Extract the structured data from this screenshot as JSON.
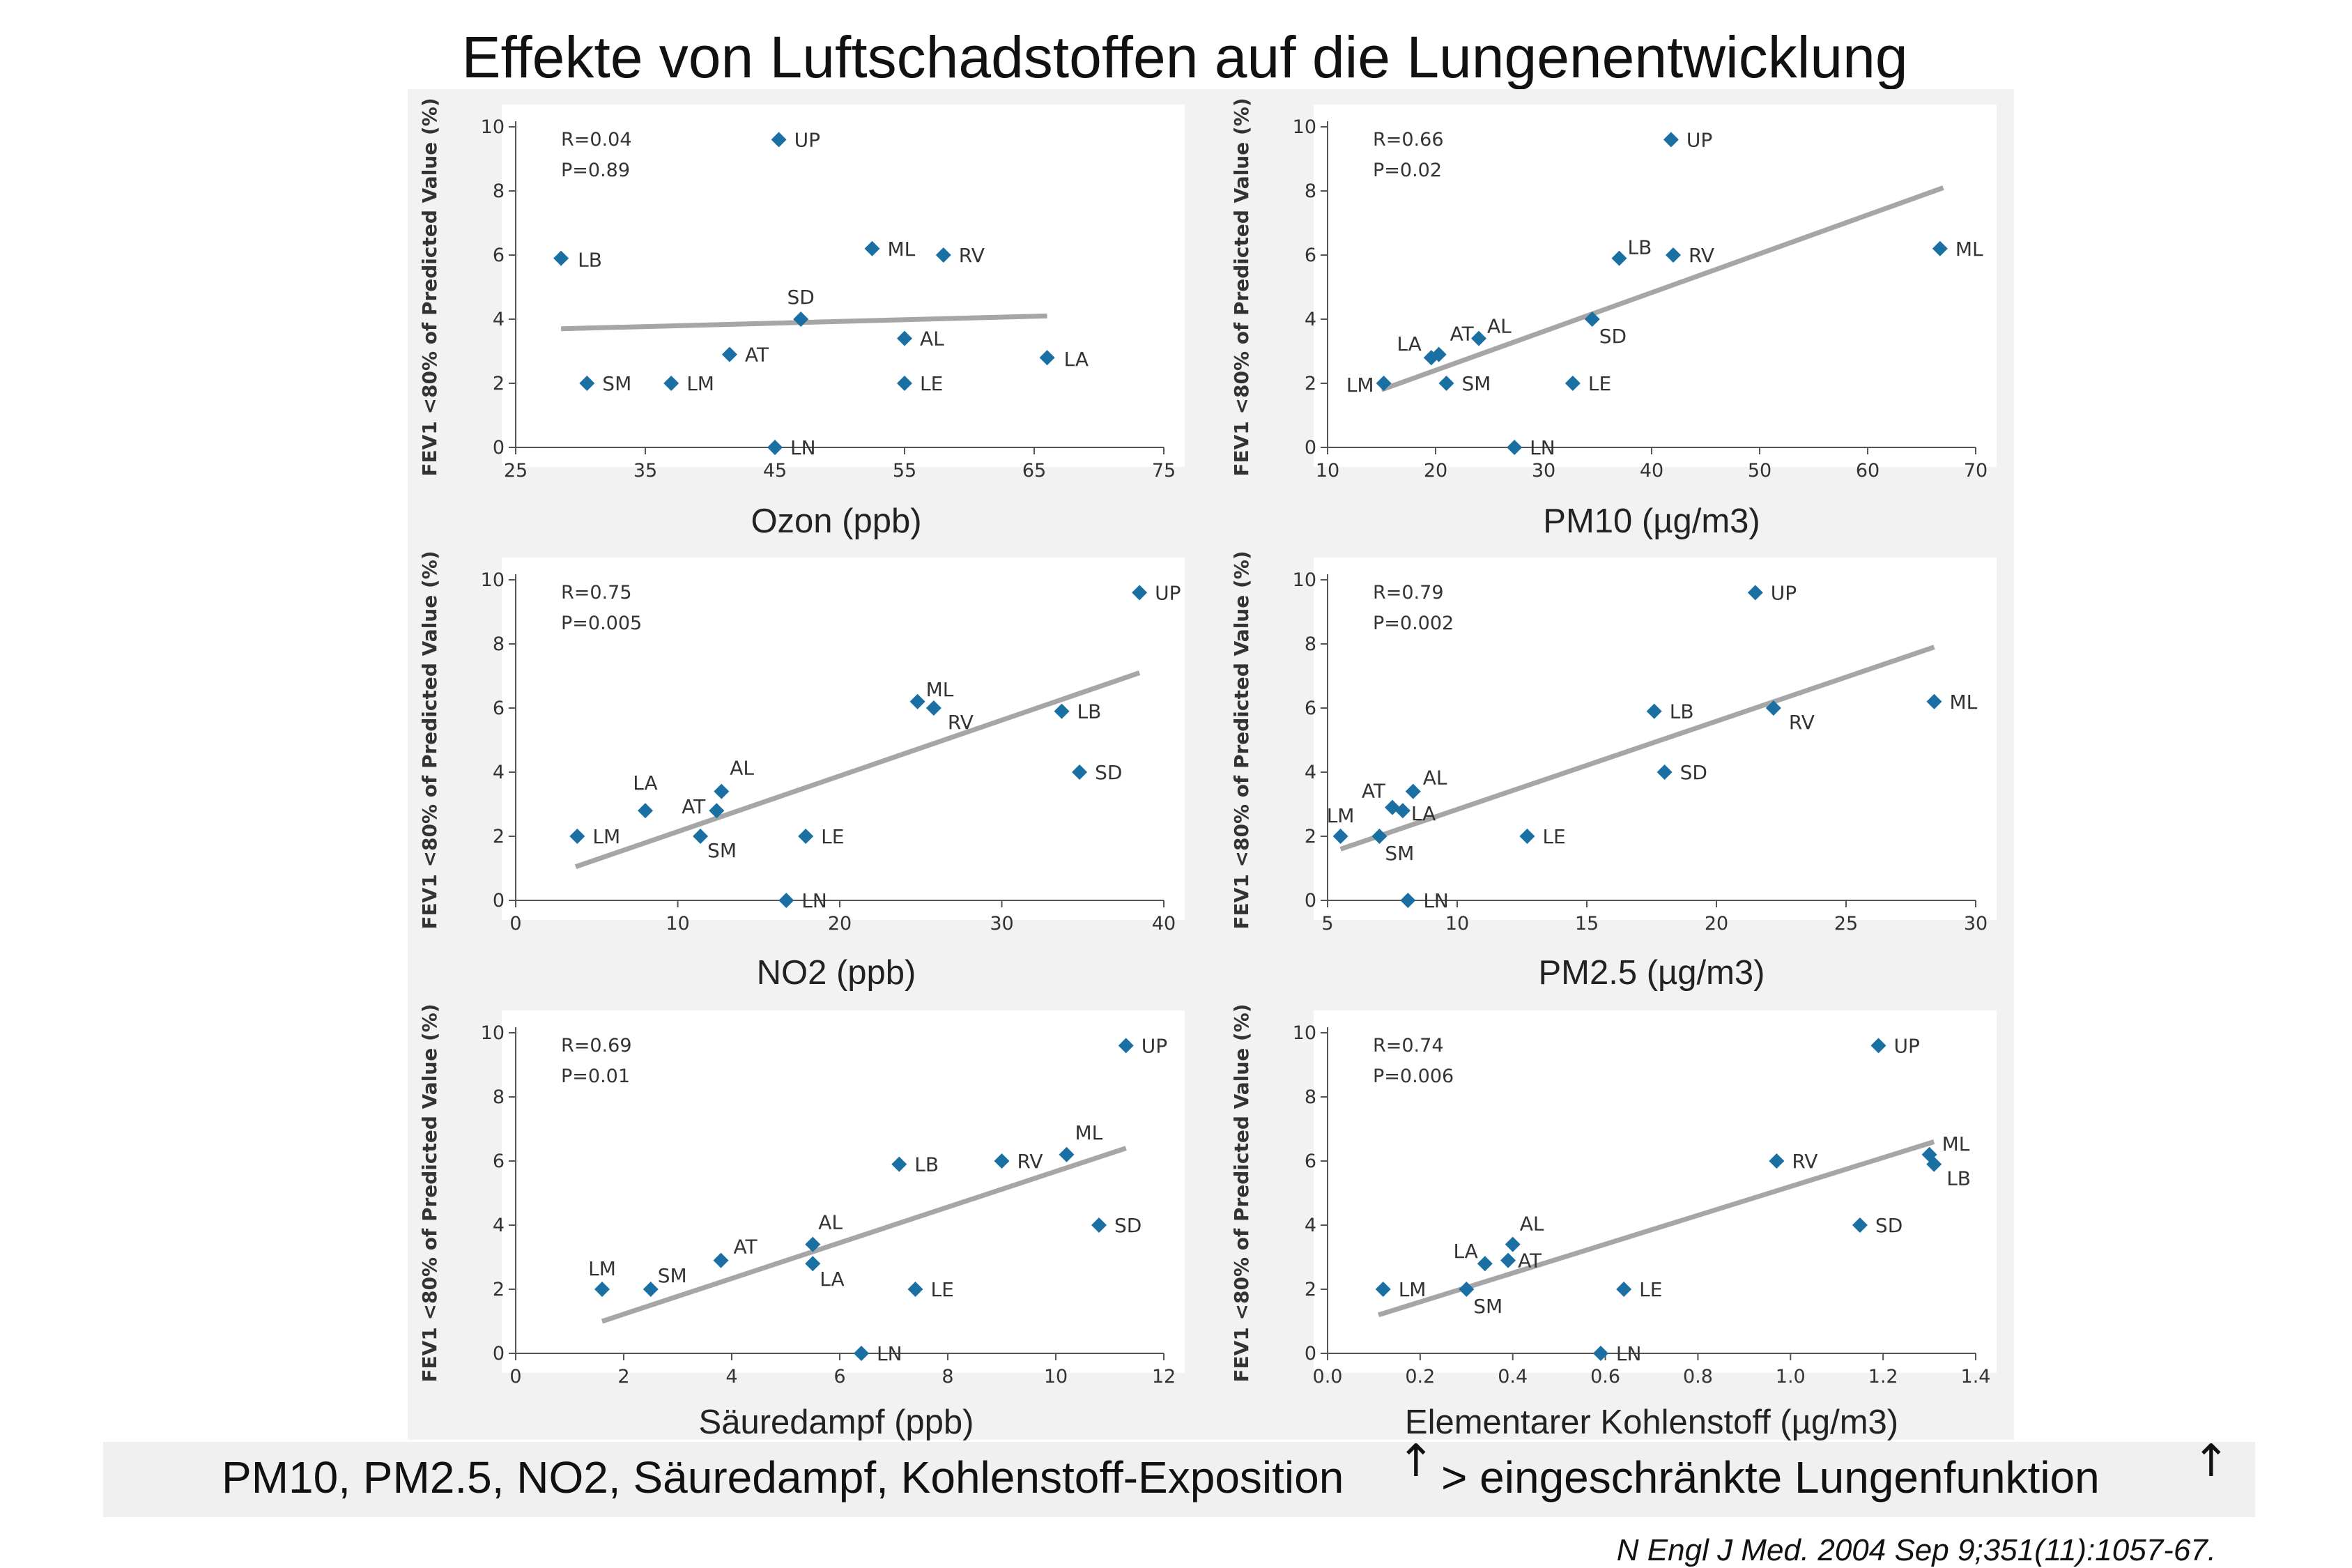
{
  "title": "Effekte von Luftschadstoffen auf die Lungenentwicklung",
  "summary": {
    "text": "PM10, PM2.5, NO2, Säuredampf, Kohlenstoff-Exposition",
    "text2": "> eingeschränkte Lungenfunktion",
    "arrow1": "↑",
    "arrow2": "↑"
  },
  "citation": "N Engl J Med. 2004 Sep 9;351(11):1057-67.",
  "colors": {
    "marker": "#1a6fa3",
    "fit_line": "#a6a6a6",
    "panel_bg": "#f2f2f2"
  },
  "chart_data": [
    {
      "type": "scatter",
      "caption": "Ozon (ppb)",
      "ylabel": "FEV1 <80% of Predicted Value (%)",
      "stats": [
        "R=0.04",
        "P=0.89"
      ],
      "xlim": [
        25,
        75
      ],
      "xticks": [
        25,
        35,
        45,
        55,
        65,
        75
      ],
      "ylim": [
        0,
        10
      ],
      "yticks": [
        0,
        2,
        4,
        6,
        8,
        10
      ],
      "fit": [
        [
          28.5,
          3.7
        ],
        [
          66.0,
          4.1
        ]
      ],
      "points": [
        {
          "label": "UP",
          "x": 45.3,
          "y": 9.6
        },
        {
          "label": "LB",
          "x": 28.5,
          "y": 5.9
        },
        {
          "label": "ML",
          "x": 52.5,
          "y": 6.2
        },
        {
          "label": "RV",
          "x": 58.0,
          "y": 6.0
        },
        {
          "label": "SD",
          "x": 47.0,
          "y": 4.0
        },
        {
          "label": "AL",
          "x": 55.0,
          "y": 3.4
        },
        {
          "label": "AT",
          "x": 41.5,
          "y": 2.9
        },
        {
          "label": "LA",
          "x": 66.0,
          "y": 2.8
        },
        {
          "label": "SM",
          "x": 30.5,
          "y": 2.0
        },
        {
          "label": "LM",
          "x": 37.0,
          "y": 2.0
        },
        {
          "label": "LE",
          "x": 55.0,
          "y": 2.0
        },
        {
          "label": "LN",
          "x": 45.0,
          "y": 0.0
        }
      ]
    },
    {
      "type": "scatter",
      "caption": "PM10 (µg/m3)",
      "ylabel": "FEV1 <80% of Predicted Value (%)",
      "stats": [
        "R=0.66",
        "P=0.02"
      ],
      "xlim": [
        10,
        70
      ],
      "xticks": [
        10,
        20,
        30,
        40,
        50,
        60,
        70
      ],
      "ylim": [
        0,
        10
      ],
      "yticks": [
        0,
        2,
        4,
        6,
        8,
        10
      ],
      "fit": [
        [
          15.0,
          1.8
        ],
        [
          67.0,
          8.1
        ]
      ],
      "points": [
        {
          "label": "UP",
          "x": 41.8,
          "y": 9.6
        },
        {
          "label": "ML",
          "x": 66.7,
          "y": 6.2
        },
        {
          "label": "LB",
          "x": 37.0,
          "y": 5.9
        },
        {
          "label": "RV",
          "x": 42.0,
          "y": 6.0
        },
        {
          "label": "SD",
          "x": 34.5,
          "y": 4.0
        },
        {
          "label": "AL",
          "x": 24.0,
          "y": 3.4
        },
        {
          "label": "AT",
          "x": 20.3,
          "y": 2.9
        },
        {
          "label": "LA",
          "x": 19.6,
          "y": 2.8
        },
        {
          "label": "LM",
          "x": 15.2,
          "y": 2.0
        },
        {
          "label": "SM",
          "x": 21.0,
          "y": 2.0
        },
        {
          "label": "LE",
          "x": 32.7,
          "y": 2.0
        },
        {
          "label": "LN",
          "x": 27.3,
          "y": 0.0
        }
      ]
    },
    {
      "type": "scatter",
      "caption": "NO2 (ppb)",
      "ylabel": "FEV1 <80% of Predicted Value (%)",
      "stats": [
        "R=0.75",
        "P=0.005"
      ],
      "xlim": [
        0,
        40
      ],
      "xticks": [
        0,
        10,
        20,
        30,
        40
      ],
      "ylim": [
        0,
        10
      ],
      "yticks": [
        0,
        2,
        4,
        6,
        8,
        10
      ],
      "fit": [
        [
          3.7,
          1.05
        ],
        [
          38.5,
          7.1
        ]
      ],
      "points": [
        {
          "label": "UP",
          "x": 38.5,
          "y": 9.6
        },
        {
          "label": "ML",
          "x": 24.8,
          "y": 6.2
        },
        {
          "label": "RV",
          "x": 25.8,
          "y": 6.0
        },
        {
          "label": "LB",
          "x": 33.7,
          "y": 5.9
        },
        {
          "label": "SD",
          "x": 34.8,
          "y": 4.0
        },
        {
          "label": "AL",
          "x": 12.7,
          "y": 3.4
        },
        {
          "label": "LA",
          "x": 8.0,
          "y": 2.8
        },
        {
          "label": "AT",
          "x": 12.4,
          "y": 2.8
        },
        {
          "label": "LM",
          "x": 3.8,
          "y": 2.0
        },
        {
          "label": "SM",
          "x": 11.4,
          "y": 2.0
        },
        {
          "label": "LE",
          "x": 17.9,
          "y": 2.0
        },
        {
          "label": "LN",
          "x": 16.7,
          "y": 0.0
        }
      ]
    },
    {
      "type": "scatter",
      "caption": "PM2.5 (µg/m3)",
      "ylabel": "FEV1 <80% of Predicted Value (%)",
      "stats": [
        "R=0.79",
        "P=0.002"
      ],
      "xlim": [
        5,
        30
      ],
      "xticks": [
        5,
        10,
        15,
        20,
        25,
        30
      ],
      "ylim": [
        0,
        10
      ],
      "yticks": [
        0,
        2,
        4,
        6,
        8,
        10
      ],
      "fit": [
        [
          5.5,
          1.6
        ],
        [
          28.4,
          7.9
        ]
      ],
      "points": [
        {
          "label": "UP",
          "x": 21.5,
          "y": 9.6
        },
        {
          "label": "ML",
          "x": 28.4,
          "y": 6.2
        },
        {
          "label": "RV",
          "x": 22.2,
          "y": 6.0
        },
        {
          "label": "LB",
          "x": 17.6,
          "y": 5.9
        },
        {
          "label": "SD",
          "x": 18.0,
          "y": 4.0
        },
        {
          "label": "AL",
          "x": 8.3,
          "y": 3.4
        },
        {
          "label": "AT",
          "x": 7.5,
          "y": 2.9
        },
        {
          "label": "LA",
          "x": 7.9,
          "y": 2.8
        },
        {
          "label": "LM",
          "x": 5.5,
          "y": 2.0
        },
        {
          "label": "SM",
          "x": 7.0,
          "y": 2.0
        },
        {
          "label": "LE",
          "x": 12.7,
          "y": 2.0
        },
        {
          "label": "LN",
          "x": 8.1,
          "y": 0.0
        }
      ]
    },
    {
      "type": "scatter",
      "caption": "Säuredampf (ppb)",
      "ylabel": "FEV1 <80% of Predicted Value (%)",
      "stats": [
        "R=0.69",
        "P=0.01"
      ],
      "xlim": [
        0,
        12
      ],
      "xticks": [
        0,
        2,
        4,
        6,
        8,
        10,
        12
      ],
      "ylim": [
        0,
        10
      ],
      "yticks": [
        0,
        2,
        4,
        6,
        8,
        10
      ],
      "fit": [
        [
          1.6,
          1.0
        ],
        [
          11.3,
          6.4
        ]
      ],
      "points": [
        {
          "label": "UP",
          "x": 11.3,
          "y": 9.6
        },
        {
          "label": "LB",
          "x": 7.1,
          "y": 5.9
        },
        {
          "label": "RV",
          "x": 9.0,
          "y": 6.0
        },
        {
          "label": "ML",
          "x": 10.2,
          "y": 6.2
        },
        {
          "label": "SD",
          "x": 10.8,
          "y": 4.0
        },
        {
          "label": "AL",
          "x": 5.5,
          "y": 3.4
        },
        {
          "label": "LA",
          "x": 5.5,
          "y": 2.8
        },
        {
          "label": "AT",
          "x": 3.8,
          "y": 2.9
        },
        {
          "label": "LM",
          "x": 1.6,
          "y": 2.0
        },
        {
          "label": "SM",
          "x": 2.5,
          "y": 2.0
        },
        {
          "label": "LE",
          "x": 7.4,
          "y": 2.0
        },
        {
          "label": "LN",
          "x": 6.4,
          "y": 0.0
        }
      ]
    },
    {
      "type": "scatter",
      "caption": "Elementarer Kohlenstoff (µg/m3)",
      "ylabel": "FEV1 <80% of Predicted Value (%)",
      "stats": [
        "R=0.74",
        "P=0.006"
      ],
      "xlim": [
        0.0,
        1.4
      ],
      "xticks": [
        0.0,
        0.2,
        0.4,
        0.6,
        0.8,
        1.0,
        1.2,
        1.4
      ],
      "ylim": [
        0,
        10
      ],
      "yticks": [
        0,
        2,
        4,
        6,
        8,
        10
      ],
      "fit": [
        [
          0.11,
          1.2
        ],
        [
          1.31,
          6.6
        ]
      ],
      "points": [
        {
          "label": "UP",
          "x": 1.19,
          "y": 9.6
        },
        {
          "label": "ML",
          "x": 1.3,
          "y": 6.2
        },
        {
          "label": "LB",
          "x": 1.31,
          "y": 5.9
        },
        {
          "label": "RV",
          "x": 0.97,
          "y": 6.0
        },
        {
          "label": "SD",
          "x": 1.15,
          "y": 4.0
        },
        {
          "label": "AL",
          "x": 0.4,
          "y": 3.4
        },
        {
          "label": "LA",
          "x": 0.34,
          "y": 2.8
        },
        {
          "label": "AT",
          "x": 0.39,
          "y": 2.9
        },
        {
          "label": "LM",
          "x": 0.12,
          "y": 2.0
        },
        {
          "label": "SM",
          "x": 0.3,
          "y": 2.0
        },
        {
          "label": "LE",
          "x": 0.64,
          "y": 2.0
        },
        {
          "label": "LN",
          "x": 0.59,
          "y": 0.0
        }
      ]
    }
  ]
}
